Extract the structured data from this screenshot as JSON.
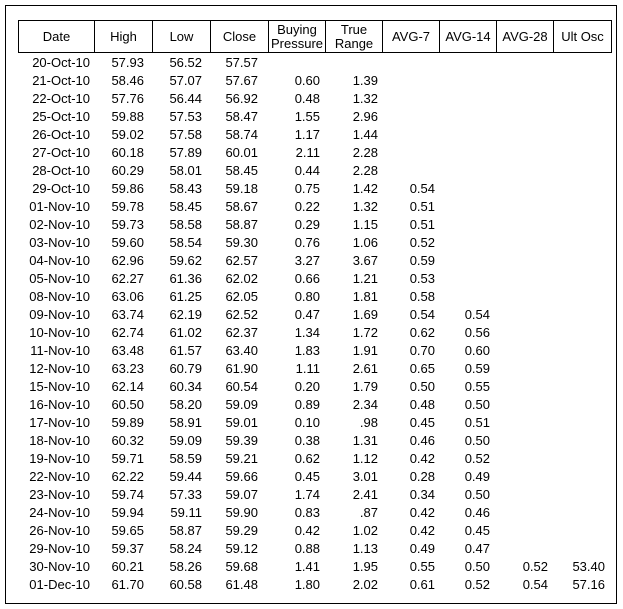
{
  "columns": [
    {
      "key": "date",
      "label": "Date"
    },
    {
      "key": "high",
      "label": "High"
    },
    {
      "key": "low",
      "label": "Low"
    },
    {
      "key": "close",
      "label": "Close"
    },
    {
      "key": "bp",
      "label": "Buying Pressure"
    },
    {
      "key": "tr",
      "label": "True Range"
    },
    {
      "key": "a7",
      "label": "AVG-7"
    },
    {
      "key": "a14",
      "label": "AVG-14"
    },
    {
      "key": "a28",
      "label": "AVG-28"
    },
    {
      "key": "uo",
      "label": "Ult Osc"
    }
  ],
  "rows": [
    [
      "20-Oct-10",
      "57.93",
      "56.52",
      "57.57",
      "",
      "",
      "",
      "",
      "",
      ""
    ],
    [
      "21-Oct-10",
      "58.46",
      "57.07",
      "57.67",
      "0.60",
      "1.39",
      "",
      "",
      "",
      ""
    ],
    [
      "22-Oct-10",
      "57.76",
      "56.44",
      "56.92",
      "0.48",
      "1.32",
      "",
      "",
      "",
      ""
    ],
    [
      "25-Oct-10",
      "59.88",
      "57.53",
      "58.47",
      "1.55",
      "2.96",
      "",
      "",
      "",
      ""
    ],
    [
      "26-Oct-10",
      "59.02",
      "57.58",
      "58.74",
      "1.17",
      "1.44",
      "",
      "",
      "",
      ""
    ],
    [
      "27-Oct-10",
      "60.18",
      "57.89",
      "60.01",
      "2.11",
      "2.28",
      "",
      "",
      "",
      ""
    ],
    [
      "28-Oct-10",
      "60.29",
      "58.01",
      "58.45",
      "0.44",
      "2.28",
      "",
      "",
      "",
      ""
    ],
    [
      "29-Oct-10",
      "59.86",
      "58.43",
      "59.18",
      "0.75",
      "1.42",
      "0.54",
      "",
      "",
      ""
    ],
    [
      "01-Nov-10",
      "59.78",
      "58.45",
      "58.67",
      "0.22",
      "1.32",
      "0.51",
      "",
      "",
      ""
    ],
    [
      "02-Nov-10",
      "59.73",
      "58.58",
      "58.87",
      "0.29",
      "1.15",
      "0.51",
      "",
      "",
      ""
    ],
    [
      "03-Nov-10",
      "59.60",
      "58.54",
      "59.30",
      "0.76",
      "1.06",
      "0.52",
      "",
      "",
      ""
    ],
    [
      "04-Nov-10",
      "62.96",
      "59.62",
      "62.57",
      "3.27",
      "3.67",
      "0.59",
      "",
      "",
      ""
    ],
    [
      "05-Nov-10",
      "62.27",
      "61.36",
      "62.02",
      "0.66",
      "1.21",
      "0.53",
      "",
      "",
      ""
    ],
    [
      "08-Nov-10",
      "63.06",
      "61.25",
      "62.05",
      "0.80",
      "1.81",
      "0.58",
      "",
      "",
      ""
    ],
    [
      "09-Nov-10",
      "63.74",
      "62.19",
      "62.52",
      "0.47",
      "1.69",
      "0.54",
      "0.54",
      "",
      ""
    ],
    [
      "10-Nov-10",
      "62.74",
      "61.02",
      "62.37",
      "1.34",
      "1.72",
      "0.62",
      "0.56",
      "",
      ""
    ],
    [
      "11-Nov-10",
      "63.48",
      "61.57",
      "63.40",
      "1.83",
      "1.91",
      "0.70",
      "0.60",
      "",
      ""
    ],
    [
      "12-Nov-10",
      "63.23",
      "60.79",
      "61.90",
      "1.11",
      "2.61",
      "0.65",
      "0.59",
      "",
      ""
    ],
    [
      "15-Nov-10",
      "62.14",
      "60.34",
      "60.54",
      "0.20",
      "1.79",
      "0.50",
      "0.55",
      "",
      ""
    ],
    [
      "16-Nov-10",
      "60.50",
      "58.20",
      "59.09",
      "0.89",
      "2.34",
      "0.48",
      "0.50",
      "",
      ""
    ],
    [
      "17-Nov-10",
      "59.89",
      "58.91",
      "59.01",
      "0.10",
      ".98",
      "0.45",
      "0.51",
      "",
      ""
    ],
    [
      "18-Nov-10",
      "60.32",
      "59.09",
      "59.39",
      "0.38",
      "1.31",
      "0.46",
      "0.50",
      "",
      ""
    ],
    [
      "19-Nov-10",
      "59.71",
      "58.59",
      "59.21",
      "0.62",
      "1.12",
      "0.42",
      "0.52",
      "",
      ""
    ],
    [
      "22-Nov-10",
      "62.22",
      "59.44",
      "59.66",
      "0.45",
      "3.01",
      "0.28",
      "0.49",
      "",
      ""
    ],
    [
      "23-Nov-10",
      "59.74",
      "57.33",
      "59.07",
      "1.74",
      "2.41",
      "0.34",
      "0.50",
      "",
      ""
    ],
    [
      "24-Nov-10",
      "59.94",
      "59.11",
      "59.90",
      "0.83",
      ".87",
      "0.42",
      "0.46",
      "",
      ""
    ],
    [
      "26-Nov-10",
      "59.65",
      "58.87",
      "59.29",
      "0.42",
      "1.02",
      "0.42",
      "0.45",
      "",
      ""
    ],
    [
      "29-Nov-10",
      "59.37",
      "58.24",
      "59.12",
      "0.88",
      "1.13",
      "0.49",
      "0.47",
      "",
      ""
    ],
    [
      "30-Nov-10",
      "60.21",
      "58.26",
      "59.68",
      "1.41",
      "1.95",
      "0.55",
      "0.50",
      "0.52",
      "53.40"
    ],
    [
      "01-Dec-10",
      "61.70",
      "60.58",
      "61.48",
      "1.80",
      "2.02",
      "0.61",
      "0.52",
      "0.54",
      "57.16"
    ]
  ]
}
